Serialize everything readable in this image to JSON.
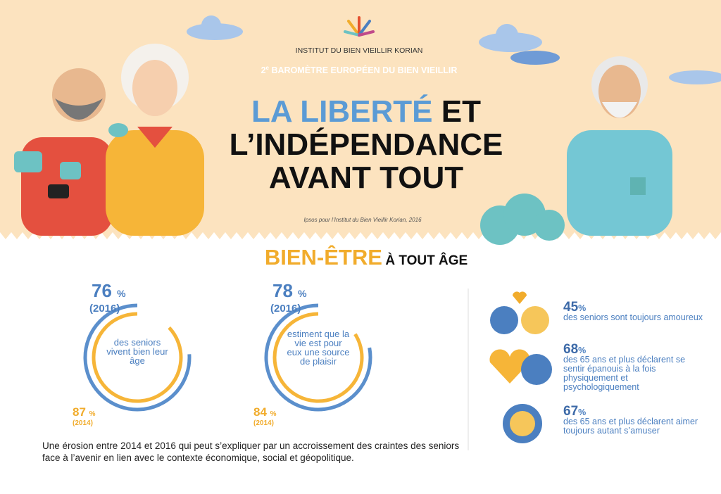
{
  "header": {
    "institute": "INSTITUT DU BIEN VIEILLIR KORIAN",
    "subtitle_number": "2",
    "subtitle_sup": "e",
    "subtitle_rest": "BAROMÈTRE EUROPÉEN DU BIEN VIEILLIR",
    "title_blue": "LA LIBERTÉ",
    "title_black": "ET",
    "title_line2": "L’INDÉPENDANCE",
    "title_line3": "AVANT TOUT",
    "source": "Ipsos pour l’Institut du Bien Vieillir Korian, 2016"
  },
  "section": {
    "title_main": "BIEN-ÊTRE",
    "title_rest": "À TOUT ÂGE"
  },
  "rings": [
    {
      "value_2016": 76,
      "unit": "%",
      "label_2016": "(2016)",
      "text": "des seniors vivent bien leur âge",
      "value_2014": 87,
      "label_2014": "(2014)"
    },
    {
      "value_2016": 78,
      "unit": "%",
      "label_2016": "(2016)",
      "text": "estiment que la vie est pour eux une source de plaisir",
      "value_2014": 84,
      "label_2014": "(2014)"
    }
  ],
  "footnote": "Une érosion entre 2014 et 2016 qui peut s’expliquer par un accroissement des craintes des seniors face à l’avenir en lien avec le contexte économique, social et géopolitique.",
  "stats": [
    {
      "value": 45,
      "unit": "%",
      "text": "des seniors sont toujours amoureux"
    },
    {
      "value": 68,
      "unit": "%",
      "text": "des 65 ans et plus déclarent se sentir épanouis à la fois physiquement et psychologiquement"
    },
    {
      "value": 67,
      "unit": "%",
      "text": "des 65 ans et plus déclarent aimer toujours autant s’amuser"
    }
  ]
}
